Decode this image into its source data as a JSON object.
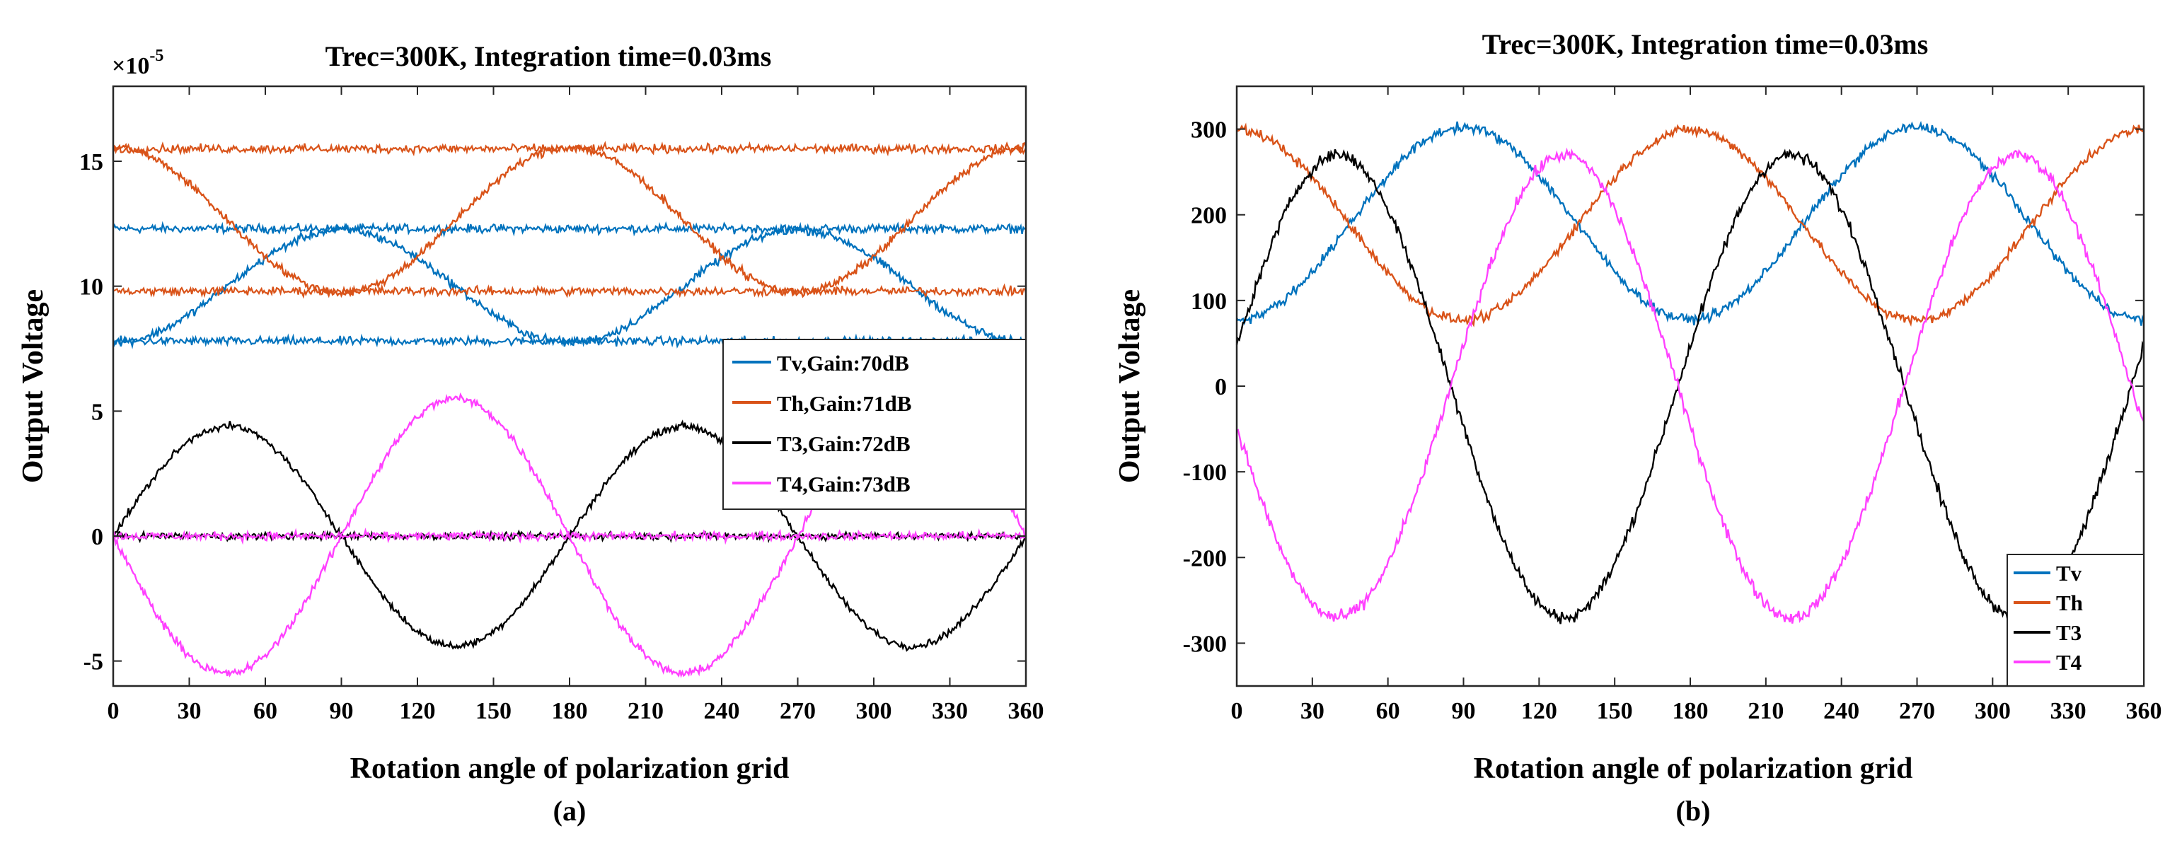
{
  "chart_data": [
    {
      "type": "line",
      "title": "Trec=300K, Integration time=0.03ms",
      "xlabel": "Rotation angle of polarization grid",
      "ylabel": "Output Voltage",
      "caption": "(a)",
      "scale_note": "×10",
      "scale_exponent": "-5",
      "xlim": [
        0,
        360
      ],
      "ylim": [
        -6,
        18
      ],
      "xticks": [
        "0",
        "30",
        "60",
        "90",
        "120",
        "150",
        "180",
        "210",
        "240",
        "270",
        "300",
        "330",
        "360"
      ],
      "yticks": [
        "-5",
        "0",
        "5",
        "10",
        "15"
      ],
      "legend_position": "middle-right",
      "series": [
        {
          "name": "Tv,Gain:70dB",
          "color": "#0072bd",
          "model": "cos2",
          "mean": 10.0,
          "amp": -2.25,
          "phase": 0,
          "noise": 0.12,
          "flat_levels": [
            12.3,
            7.8
          ]
        },
        {
          "name": "Th,Gain:71dB",
          "color": "#d95319",
          "model": "cos2",
          "mean": 12.65,
          "amp": 2.9,
          "phase": 0,
          "noise": 0.12,
          "flat_levels": [
            15.5,
            9.8
          ]
        },
        {
          "name": "T3,Gain:72dB",
          "color": "#000000",
          "model": "sin2",
          "mean": 0,
          "amp": 4.4,
          "phase": 0,
          "noise": 0.1,
          "flat_levels": [
            0.0
          ]
        },
        {
          "name": "T4,Gain:73dB",
          "color": "#ff40ff",
          "model": "sin2",
          "mean": 0,
          "amp": -5.5,
          "phase": 0,
          "noise": 0.12,
          "flat_levels": [
            0.0
          ]
        }
      ]
    },
    {
      "type": "line",
      "title": "Trec=300K, Integration time=0.03ms",
      "xlabel": "Rotation angle of polarization grid",
      "ylabel": "Output Voltage",
      "caption": "(b)",
      "xlim": [
        0,
        360
      ],
      "ylim": [
        -350,
        350
      ],
      "xticks": [
        "0",
        "30",
        "60",
        "90",
        "120",
        "150",
        "180",
        "210",
        "240",
        "270",
        "300",
        "330",
        "360"
      ],
      "yticks": [
        "-300",
        "-200",
        "-100",
        "0",
        "100",
        "200",
        "300"
      ],
      "legend_position": "bottom-right",
      "series": [
        {
          "name": "Tv",
          "color": "#0072bd",
          "model": "cos2",
          "mean": 190,
          "amp": -112,
          "phase": 0,
          "noise": 4,
          "flat_levels": []
        },
        {
          "name": "Th",
          "color": "#d95319",
          "model": "cos2",
          "mean": 188,
          "amp": 111,
          "phase": 0,
          "noise": 4,
          "flat_levels": []
        },
        {
          "name": "T3",
          "color": "#000000",
          "model": "sin2",
          "mean": 0,
          "amp": 270,
          "phase": 5,
          "noise": 5,
          "flat_levels": []
        },
        {
          "name": "T4",
          "color": "#ff40ff",
          "model": "sin2",
          "mean": 0,
          "amp": -270,
          "phase": 5,
          "noise": 5,
          "flat_levels": []
        }
      ]
    }
  ]
}
